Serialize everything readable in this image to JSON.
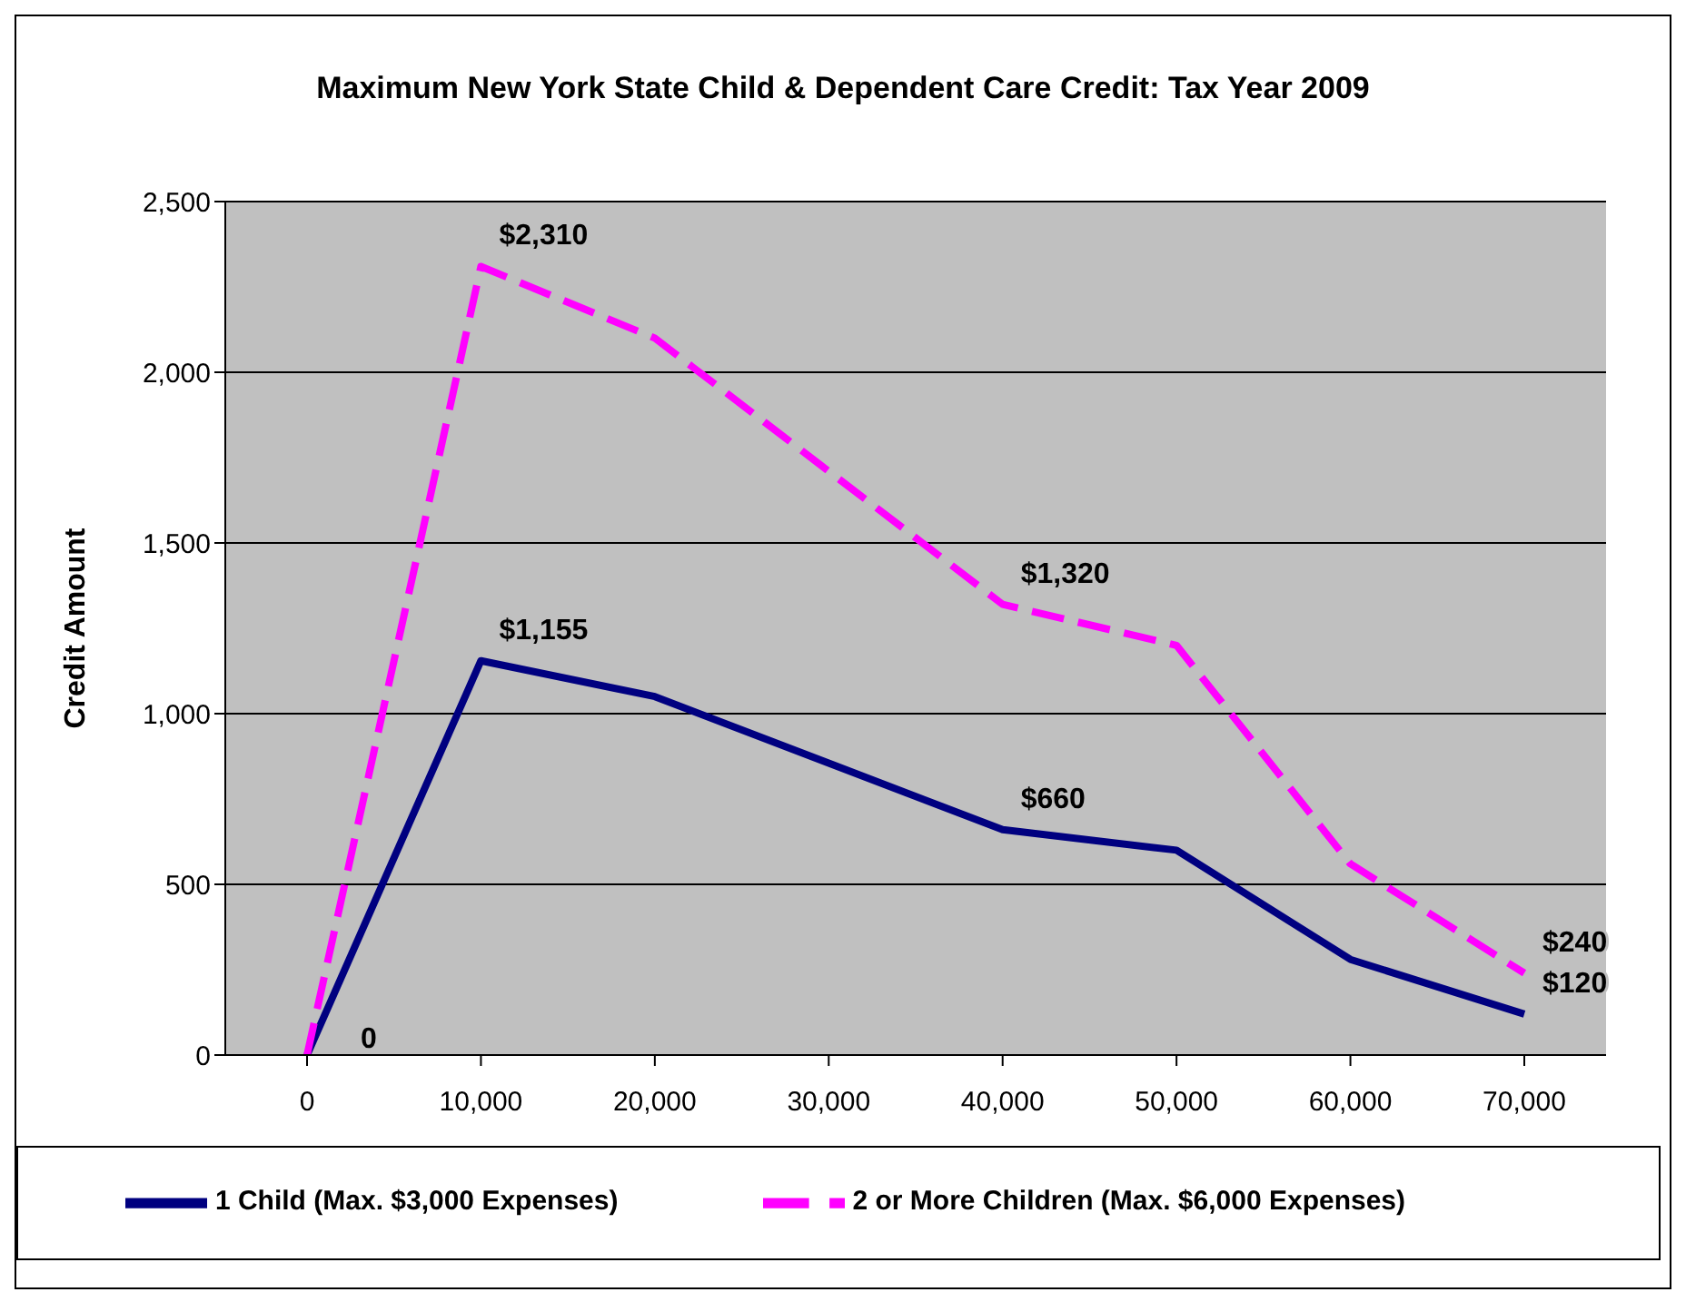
{
  "chart_data": {
    "type": "line",
    "title": "Maximum New York State Child & Dependent Care Credit: Tax Year 2009",
    "ylabel": "Credit Amount",
    "categories": [
      "0",
      "10,000",
      "20,000",
      "30,000",
      "40,000",
      "50,000",
      "60,000",
      "70,000"
    ],
    "series": [
      {
        "name": "1 Child (Max. $3,000 Expenses)",
        "color": "#000080",
        "line_style": "solid",
        "values": [
          0,
          1155,
          1050,
          855,
          660,
          600,
          280,
          120
        ],
        "value_labels": [
          "0",
          "$1,155",
          null,
          null,
          "$660",
          null,
          null,
          "$120"
        ]
      },
      {
        "name": "2 or More Children (Max. $6,000 Expenses)",
        "color": "#ff00ff",
        "line_style": "dashed",
        "values": [
          0,
          2310,
          2100,
          1710,
          1320,
          1200,
          560,
          240
        ],
        "value_labels": [
          "0",
          "$2,310",
          null,
          null,
          "$1,320",
          null,
          null,
          "$240"
        ]
      }
    ],
    "ylim": [
      0,
      2500
    ],
    "yticks": [
      0,
      500,
      {
        "value": 1000,
        "label": "1,000"
      },
      {
        "value": 1500,
        "label": "1,500"
      },
      {
        "value": 2000,
        "label": "2,000"
      },
      {
        "value": 2500,
        "label": "2,500"
      }
    ],
    "grid": "y",
    "legend": "bottom",
    "marker": "none"
  }
}
